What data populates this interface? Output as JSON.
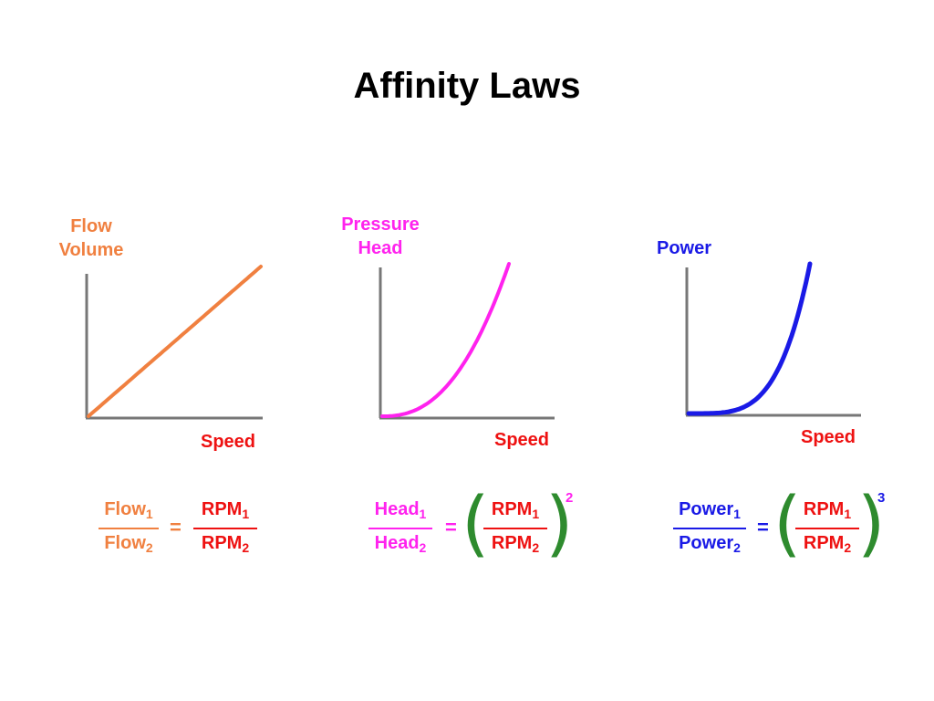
{
  "title": "Affinity Laws",
  "colors": {
    "flow": "#f08040",
    "head": "#ff22ee",
    "power": "#1a1ae6",
    "rpm": "#ee1111",
    "paren": "#2e8b2e",
    "axis": "#777777"
  },
  "panels": [
    {
      "ylabel_line1": "Flow",
      "ylabel_line2": "Volume",
      "xlabel": "Speed"
    },
    {
      "ylabel_line1": "Pressure",
      "ylabel_line2": "Head",
      "xlabel": "Speed"
    },
    {
      "ylabel_line1": "",
      "ylabel_line2": "Power",
      "xlabel": "Speed"
    }
  ],
  "chart_data": [
    {
      "type": "line",
      "xlabel": "Speed",
      "ylabel": "Flow Volume",
      "exponent": 1
    },
    {
      "type": "line",
      "xlabel": "Speed",
      "ylabel": "Pressure Head",
      "exponent": 2
    },
    {
      "type": "line",
      "xlabel": "Speed",
      "ylabel": "Power",
      "exponent": 3
    }
  ],
  "formulas": [
    {
      "lhs_num": "Flow",
      "lhs_den": "Flow",
      "sub1": "1",
      "sub2": "2",
      "eq": "=",
      "rhs_num": "RPM",
      "rhs_den": "RPM",
      "exponent": ""
    },
    {
      "lhs_num": "Head",
      "lhs_den": "Head",
      "sub1": "1",
      "sub2": "2",
      "eq": "=",
      "rhs_num": "RPM",
      "rhs_den": "RPM",
      "exponent": "2"
    },
    {
      "lhs_num": "Power",
      "lhs_den": "Power",
      "sub1": "1",
      "sub2": "2",
      "eq": "=",
      "rhs_num": "RPM",
      "rhs_den": "RPM",
      "exponent": "3"
    }
  ]
}
